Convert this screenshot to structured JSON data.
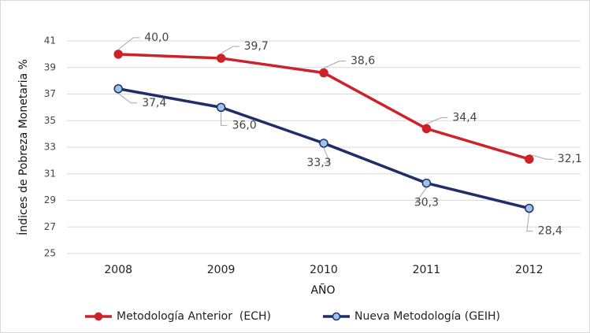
{
  "chart_data": {
    "type": "line",
    "x_label": "AÑO",
    "y_label": "Índices de Pobreza Monetaria %",
    "categories": [
      "2008",
      "2009",
      "2010",
      "2011",
      "2012"
    ],
    "series": [
      {
        "name": "Metodología Anterior  (ECH)",
        "color": "#cc2229",
        "marker_fill": "#cc2229",
        "values": [
          40.0,
          39.7,
          38.6,
          34.4,
          32.1
        ],
        "value_labels": [
          "40,0",
          "39,7",
          "38,6",
          "34,4",
          "32,1"
        ]
      },
      {
        "name": "Nueva Metodología (GEIH)",
        "color": "#1f2d6b",
        "marker_fill": "#9dc3e6",
        "values": [
          37.4,
          36.0,
          33.3,
          30.3,
          28.4
        ],
        "value_labels": [
          "37,4",
          "36,0",
          "33,3",
          "30,3",
          "28,4"
        ]
      }
    ],
    "ylim": [
      25,
      41
    ],
    "yticks": [
      25,
      27,
      29,
      31,
      33,
      35,
      37,
      39,
      41
    ],
    "grid": true,
    "legend": "bottom"
  }
}
